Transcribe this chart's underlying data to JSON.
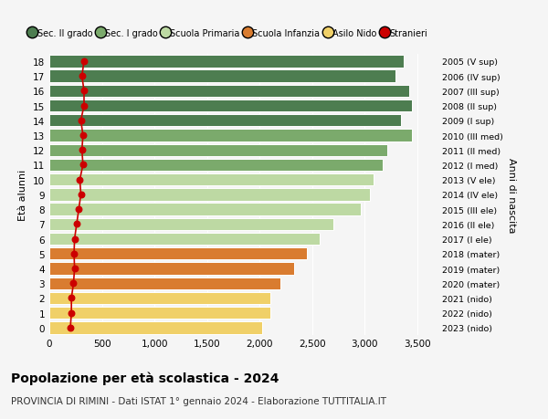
{
  "ages": [
    18,
    17,
    16,
    15,
    14,
    13,
    12,
    11,
    10,
    9,
    8,
    7,
    6,
    5,
    4,
    3,
    2,
    1,
    0
  ],
  "right_labels": [
    "2005 (V sup)",
    "2006 (IV sup)",
    "2007 (III sup)",
    "2008 (II sup)",
    "2009 (I sup)",
    "2010 (III med)",
    "2011 (II med)",
    "2012 (I med)",
    "2013 (V ele)",
    "2014 (IV ele)",
    "2015 (III ele)",
    "2016 (II ele)",
    "2017 (I ele)",
    "2018 (mater)",
    "2019 (mater)",
    "2020 (mater)",
    "2021 (nido)",
    "2022 (nido)",
    "2023 (nido)"
  ],
  "bar_values": [
    3370,
    3290,
    3420,
    3450,
    3340,
    3450,
    3210,
    3170,
    3080,
    3050,
    2960,
    2700,
    2570,
    2450,
    2330,
    2200,
    2100,
    2100,
    2020
  ],
  "stranieri": [
    330,
    310,
    330,
    330,
    300,
    320,
    310,
    320,
    290,
    300,
    280,
    260,
    240,
    235,
    240,
    230,
    210,
    210,
    200
  ],
  "bar_colors": [
    "#4d7d50",
    "#4d7d50",
    "#4d7d50",
    "#4d7d50",
    "#4d7d50",
    "#7baa6c",
    "#7baa6c",
    "#7baa6c",
    "#bdd9a3",
    "#bdd9a3",
    "#bdd9a3",
    "#bdd9a3",
    "#bdd9a3",
    "#d97c30",
    "#d97c30",
    "#d97c30",
    "#f0d068",
    "#f0d068",
    "#f0d068"
  ],
  "legend_labels": [
    "Sec. II grado",
    "Sec. I grado",
    "Scuola Primaria",
    "Scuola Infanzia",
    "Asilo Nido",
    "Stranieri"
  ],
  "legend_colors": [
    "#4d7d50",
    "#7baa6c",
    "#bdd9a3",
    "#d97c30",
    "#f0d068",
    "#cc0000"
  ],
  "ylabel": "Età alunni",
  "right_ylabel": "Anni di nascita",
  "title": "Popolazione per età scolastica - 2024",
  "subtitle": "PROVINCIA DI RIMINI - Dati ISTAT 1° gennaio 2024 - Elaborazione TUTTITALIA.IT",
  "xlim": [
    0,
    3700
  ],
  "xticks": [
    0,
    500,
    1000,
    1500,
    2000,
    2500,
    3000,
    3500
  ],
  "xtick_labels": [
    "0",
    "500",
    "1,000",
    "1,500",
    "2,000",
    "2,500",
    "3,000",
    "3,500"
  ],
  "background_color": "#f5f5f5",
  "stranieri_color": "#cc0000",
  "bar_height": 0.82
}
